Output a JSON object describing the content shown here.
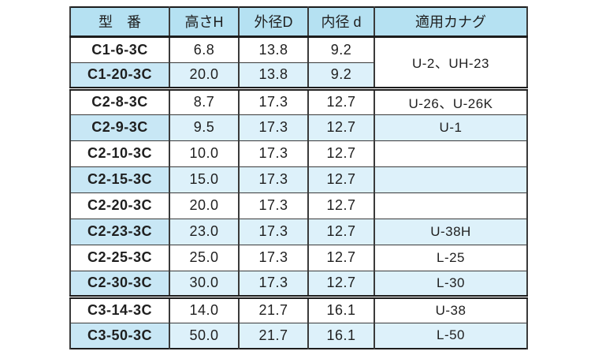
{
  "table": {
    "headers": {
      "model": "型　番",
      "height": "高さH",
      "outer": "外径D",
      "inner": "内径 d",
      "fitting": "適用カナグ"
    },
    "rows": [
      {
        "model": "C1-6-3C",
        "h": "6.8",
        "D": "13.8",
        "d": "9.2",
        "fit": "U-2、UH-23"
      },
      {
        "model": "C1-20-3C",
        "h": "20.0",
        "D": "13.8",
        "d": "9.2"
      },
      {
        "model": "C2-8-3C",
        "h": "8.7",
        "D": "17.3",
        "d": "12.7",
        "fit": "U-26、U-26K"
      },
      {
        "model": "C2-9-3C",
        "h": "9.5",
        "D": "17.3",
        "d": "12.7",
        "fit": "U-1"
      },
      {
        "model": "C2-10-3C",
        "h": "10.0",
        "D": "17.3",
        "d": "12.7",
        "fit": ""
      },
      {
        "model": "C2-15-3C",
        "h": "15.0",
        "D": "17.3",
        "d": "12.7",
        "fit": ""
      },
      {
        "model": "C2-20-3C",
        "h": "20.0",
        "D": "17.3",
        "d": "12.7",
        "fit": ""
      },
      {
        "model": "C2-23-3C",
        "h": "23.0",
        "D": "17.3",
        "d": "12.7",
        "fit": "U-38H"
      },
      {
        "model": "C2-25-3C",
        "h": "25.0",
        "D": "17.3",
        "d": "12.7",
        "fit": "L-25"
      },
      {
        "model": "C2-30-3C",
        "h": "30.0",
        "D": "17.3",
        "d": "12.7",
        "fit": "L-30"
      },
      {
        "model": "C3-14-3C",
        "h": "14.0",
        "D": "21.7",
        "d": "16.1",
        "fit": "U-38"
      },
      {
        "model": "C3-50-3C",
        "h": "50.0",
        "D": "21.7",
        "d": "16.1",
        "fit": "L-50"
      }
    ],
    "colors": {
      "header_bg": "#b5e1f2",
      "alt_row_bg": "#ddf1fa",
      "alt_model_bg": "#c8e7f5",
      "border": "#1d1d1d",
      "text": "#1f1f1f"
    }
  }
}
